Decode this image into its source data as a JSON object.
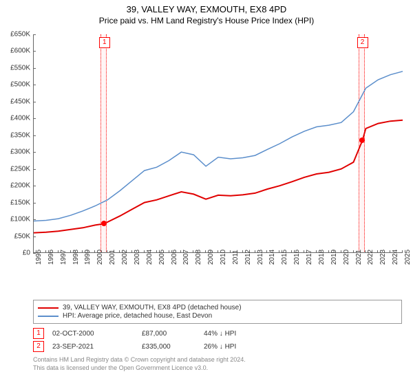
{
  "header": {
    "line1": "39, VALLEY WAY, EXMOUTH, EX8 4PD",
    "line2": "Price paid vs. HM Land Registry's House Price Index (HPI)"
  },
  "chart": {
    "type": "line",
    "background_color": "#ffffff",
    "axis_color": "#666666",
    "label_color": "#333333",
    "label_fontsize": 10,
    "ylim": [
      0,
      650000
    ],
    "ytick_step": 50000,
    "yticks": [
      "£0",
      "£50K",
      "£100K",
      "£150K",
      "£200K",
      "£250K",
      "£300K",
      "£350K",
      "£400K",
      "£450K",
      "£500K",
      "£550K",
      "£600K",
      "£650K"
    ],
    "xlim": [
      1995,
      2025
    ],
    "xticks": [
      "1995",
      "1996",
      "1997",
      "1998",
      "1999",
      "2000",
      "2001",
      "2002",
      "2003",
      "2004",
      "2005",
      "2006",
      "2007",
      "2008",
      "2009",
      "2010",
      "2011",
      "2012",
      "2013",
      "2014",
      "2015",
      "2016",
      "2017",
      "2018",
      "2019",
      "2020",
      "2021",
      "2022",
      "2023",
      "2024",
      "2025"
    ],
    "series": [
      {
        "name": "price_paid",
        "color": "#e00000",
        "line_width": 2,
        "x": [
          1995,
          1996,
          1997,
          1998,
          1999,
          2000,
          2000.75,
          2001,
          2002,
          2003,
          2004,
          2005,
          2006,
          2007,
          2008,
          2009,
          2010,
          2011,
          2012,
          2013,
          2014,
          2015,
          2016,
          2017,
          2018,
          2019,
          2020,
          2021,
          2021.73,
          2022,
          2023,
          2024,
          2025
        ],
        "y": [
          60000,
          62000,
          65000,
          70000,
          75000,
          83000,
          87000,
          92000,
          110000,
          130000,
          150000,
          158000,
          170000,
          182000,
          175000,
          160000,
          172000,
          170000,
          173000,
          178000,
          190000,
          200000,
          212000,
          225000,
          235000,
          240000,
          250000,
          270000,
          335000,
          370000,
          385000,
          392000,
          395000
        ]
      },
      {
        "name": "hpi",
        "color": "#5b8ecb",
        "line_width": 1.5,
        "x": [
          1995,
          1996,
          1997,
          1998,
          1999,
          2000,
          2001,
          2002,
          2003,
          2004,
          2005,
          2006,
          2007,
          2008,
          2009,
          2010,
          2011,
          2012,
          2013,
          2014,
          2015,
          2016,
          2017,
          2018,
          2019,
          2020,
          2021,
          2022,
          2023,
          2024,
          2025
        ],
        "y": [
          95000,
          97000,
          102000,
          112000,
          125000,
          140000,
          158000,
          185000,
          215000,
          245000,
          255000,
          275000,
          300000,
          292000,
          258000,
          285000,
          280000,
          283000,
          290000,
          308000,
          325000,
          345000,
          362000,
          375000,
          380000,
          388000,
          420000,
          490000,
          515000,
          530000,
          540000
        ]
      }
    ],
    "sale_bands": [
      {
        "label": "1",
        "x": 2000.75,
        "band_width_years": 0.5
      },
      {
        "label": "2",
        "x": 2021.73,
        "band_width_years": 0.5
      }
    ],
    "sale_points": [
      {
        "x": 2000.75,
        "y": 87000
      },
      {
        "x": 2021.73,
        "y": 335000
      }
    ]
  },
  "legend": {
    "items": [
      {
        "color": "#e00000",
        "label": "39, VALLEY WAY, EXMOUTH, EX8 4PD (detached house)"
      },
      {
        "color": "#5b8ecb",
        "label": "HPI: Average price, detached house, East Devon"
      }
    ]
  },
  "sales": [
    {
      "marker": "1",
      "date": "02-OCT-2000",
      "price": "£87,000",
      "delta": "44% ↓ HPI"
    },
    {
      "marker": "2",
      "date": "23-SEP-2021",
      "price": "£335,000",
      "delta": "26% ↓ HPI"
    }
  ],
  "footer": {
    "line1": "Contains HM Land Registry data © Crown copyright and database right 2024.",
    "line2": "This data is licensed under the Open Government Licence v3.0."
  }
}
